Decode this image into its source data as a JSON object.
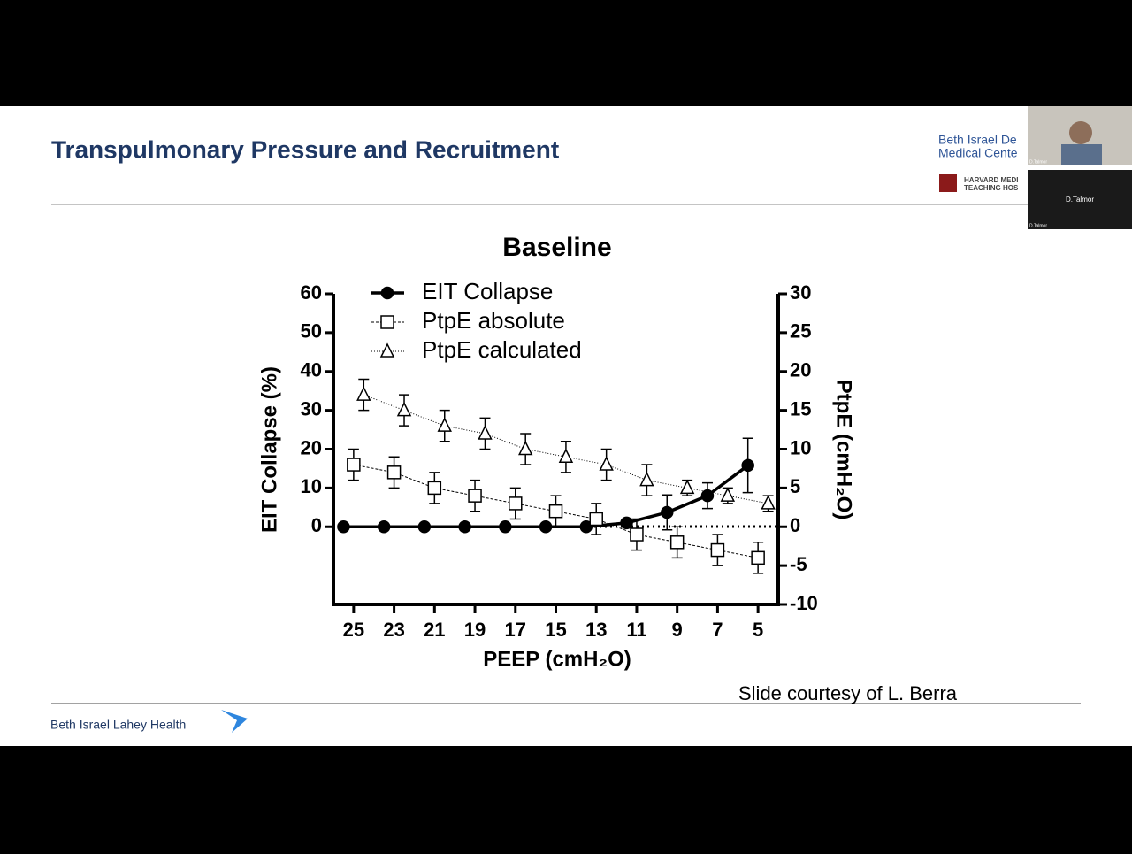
{
  "slide": {
    "title": "Transpulmonary Pressure and Recruitment",
    "logo_lines": [
      "Beth Israel De",
      "Medical Cente"
    ],
    "harvard_lines": [
      "HARVARD MEDI",
      "TEACHING HOS"
    ],
    "footer_logo": "Beth Israel Lahey Health",
    "credit": "Slide courtesy of L. Berra"
  },
  "video": {
    "tile_1_name": "D.Talmor",
    "tile_2_name": "D.Talmor",
    "tile_2_caption": "D.Talmor"
  },
  "chart_data": {
    "type": "line",
    "title": "Baseline",
    "x_label": "PEEP (cmH₂O)",
    "y_label": "EIT Collapse (%)",
    "y2_label": "PtpE (cmH₂O)",
    "xlim": [
      26,
      4
    ],
    "xticks": [
      25,
      23,
      21,
      19,
      17,
      15,
      13,
      11,
      9,
      7,
      5
    ],
    "ylim": [
      -20,
      60
    ],
    "yticks": [
      0,
      10,
      20,
      30,
      40,
      50,
      60
    ],
    "y2lim": [
      -10,
      30
    ],
    "y2ticks": [
      -10,
      -5,
      0,
      5,
      10,
      15,
      20,
      25,
      30
    ],
    "series": [
      {
        "name": "EIT Collapse",
        "color": "#000000",
        "marker": "circle",
        "axis": "y",
        "x": [
          25.5,
          23.5,
          21.5,
          19.5,
          17.5,
          15.5,
          13.5,
          11.5,
          9.5,
          7.5,
          5.5
        ],
        "values": [
          0,
          0,
          0,
          0,
          0,
          0,
          0,
          1,
          3.7,
          8,
          15.8
        ],
        "errors": [
          0,
          0,
          0,
          0,
          0,
          0,
          0,
          0,
          4.5,
          3.3,
          7
        ]
      },
      {
        "name": "PtpE absolute",
        "color": "#000000",
        "marker": "square",
        "axis": "y2",
        "x": [
          25,
          23,
          21,
          19,
          17,
          15,
          13,
          11,
          9,
          7,
          5
        ],
        "values": [
          8,
          7,
          5,
          4,
          3,
          2,
          1,
          -1,
          -2,
          -3,
          -4
        ],
        "errors": [
          2,
          2,
          2,
          2,
          2,
          2,
          2,
          2,
          2,
          2,
          2
        ]
      },
      {
        "name": "PtpE calculated",
        "color": "#000000",
        "marker": "triangle",
        "axis": "y2",
        "x": [
          24.5,
          22.5,
          20.5,
          18.5,
          16.5,
          14.5,
          12.5,
          10.5,
          8.5,
          6.5,
          4.5
        ],
        "values": [
          17,
          15,
          13,
          12,
          10,
          9,
          8,
          6,
          5,
          4,
          3
        ],
        "errors": [
          2,
          2,
          2,
          2,
          2,
          2,
          2,
          2,
          1,
          1,
          1
        ]
      }
    ]
  }
}
